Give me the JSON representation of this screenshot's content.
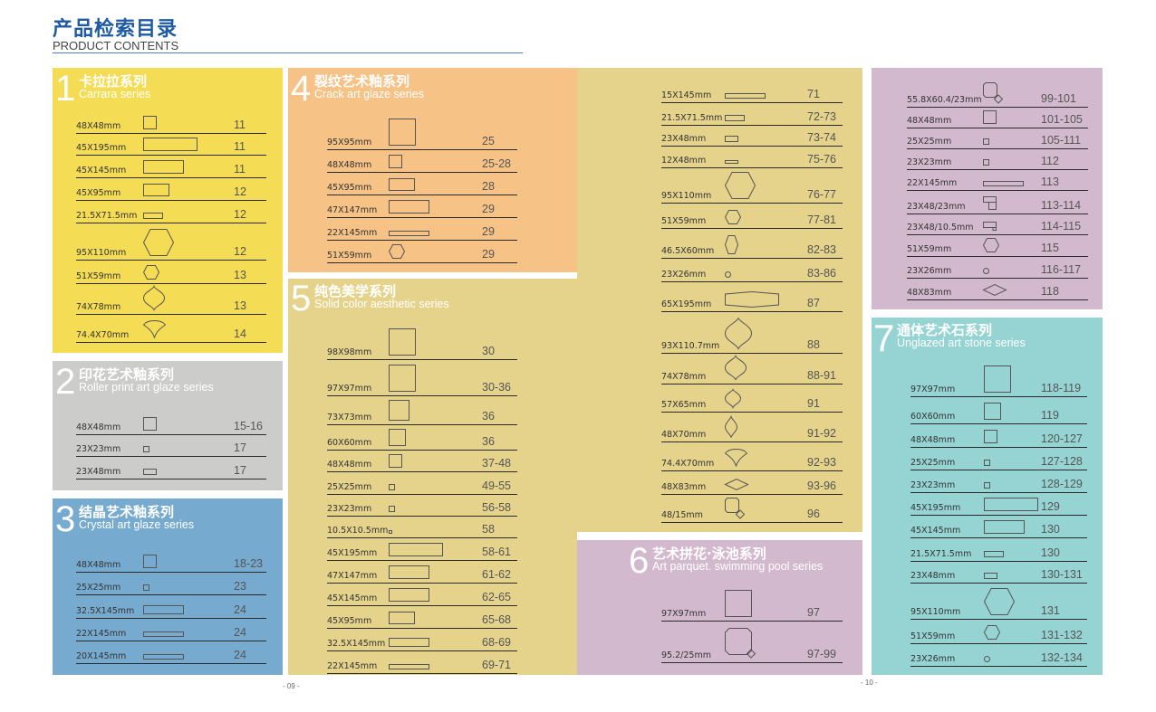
{
  "header": {
    "title_cn": "产品检索目录",
    "title_en": "PRODUCT CONTENTS"
  },
  "colors": {
    "title_blue": "#1f5aa6",
    "yellow": "#f5dc55",
    "gray": "#cccccb",
    "blue": "#76aacf",
    "orange": "#f6c286",
    "tan": "#e5d38c",
    "mauve": "#d3b9cd",
    "teal": "#96d4d4"
  },
  "sections": [
    {
      "num": "1",
      "cn": "卡拉拉系列",
      "en": "Carrara series",
      "rows": [
        {
          "size": "48X48mm",
          "shape": "sq",
          "page": "11"
        },
        {
          "size": "45X195mm",
          "shape": "rect-xl",
          "page": "11"
        },
        {
          "size": "45X145mm",
          "shape": "rect-l",
          "page": "11"
        },
        {
          "size": "45X95mm",
          "shape": "rect-m",
          "page": "12"
        },
        {
          "size": "21.5X71.5mm",
          "shape": "strip-s",
          "page": "12"
        },
        {
          "size": "95X110mm",
          "shape": "hex-l",
          "page": "12"
        },
        {
          "size": "51X59mm",
          "shape": "hex-s",
          "page": "13"
        },
        {
          "size": "74X78mm",
          "shape": "lantern",
          "page": "13"
        },
        {
          "size": "74.4X70mm",
          "shape": "fan",
          "page": "14"
        }
      ]
    },
    {
      "num": "2",
      "cn": "印花艺术釉系列",
      "en": "Roller print art glaze series",
      "rows": [
        {
          "size": "48X48mm",
          "shape": "sq",
          "page": "15-16"
        },
        {
          "size": "23X23mm",
          "shape": "sq-xs",
          "page": "17"
        },
        {
          "size": "23X48mm",
          "shape": "rect-xs",
          "page": "17"
        }
      ]
    },
    {
      "num": "3",
      "cn": "结晶艺术釉系列",
      "en": "Crystal art glaze series",
      "rows": [
        {
          "size": "48X48mm",
          "shape": "sq",
          "page": "18-23"
        },
        {
          "size": "25X25mm",
          "shape": "sq-xs",
          "page": "23"
        },
        {
          "size": "32.5X145mm",
          "shape": "strip-l",
          "page": "24"
        },
        {
          "size": "22X145mm",
          "shape": "strip-thin",
          "page": "24"
        },
        {
          "size": "20X145mm",
          "shape": "strip-thin",
          "page": "24"
        }
      ]
    },
    {
      "num": "4",
      "cn": "裂纹艺术釉系列",
      "en": "Crack art glaze series",
      "rows": [
        {
          "size": "95X95mm",
          "shape": "sq-l",
          "page": "25"
        },
        {
          "size": "48X48mm",
          "shape": "sq",
          "page": "25-28"
        },
        {
          "size": "45X95mm",
          "shape": "rect-m",
          "page": "28"
        },
        {
          "size": "47X147mm",
          "shape": "rect-l",
          "page": "29"
        },
        {
          "size": "22X145mm",
          "shape": "strip-thin",
          "page": "29"
        },
        {
          "size": "51X59mm",
          "shape": "hex-s",
          "page": "29"
        }
      ]
    },
    {
      "num": "5",
      "cn": "纯色美学系列",
      "en": "Solid color aesthetic series",
      "rows": [
        {
          "size": "98X98mm",
          "shape": "sq-l",
          "page": "30"
        },
        {
          "size": "97X97mm",
          "shape": "sq-l",
          "page": "30-36"
        },
        {
          "size": "73X73mm",
          "shape": "sq-m",
          "page": "36"
        },
        {
          "size": "60X60mm",
          "shape": "sq-60",
          "page": "36"
        },
        {
          "size": "48X48mm",
          "shape": "sq",
          "page": "37-48"
        },
        {
          "size": "25X25mm",
          "shape": "sq-xs",
          "page": "49-55"
        },
        {
          "size": "23X23mm",
          "shape": "sq-xs",
          "page": "56-58"
        },
        {
          "size": "10.5X10.5mm",
          "shape": "sq-xxs",
          "page": "58"
        },
        {
          "size": "45X195mm",
          "shape": "rect-xl",
          "page": "58-61"
        },
        {
          "size": "47X147mm",
          "shape": "rect-l",
          "page": "61-62"
        },
        {
          "size": "45X145mm",
          "shape": "rect-l",
          "page": "62-65"
        },
        {
          "size": "45X95mm",
          "shape": "rect-m",
          "page": "65-68"
        },
        {
          "size": "32.5X145mm",
          "shape": "strip-l",
          "page": "68-69"
        },
        {
          "size": "22X145mm",
          "shape": "strip-thin",
          "page": "69-71"
        }
      ],
      "continued_rows": [
        {
          "size": "15X145mm",
          "shape": "strip-thin",
          "page": "71"
        },
        {
          "size": "21.5X71.5mm",
          "shape": "strip-s",
          "page": "72-73"
        },
        {
          "size": "23X48mm",
          "shape": "rect-xs",
          "page": "73-74"
        },
        {
          "size": "12X48mm",
          "shape": "strip-xs",
          "page": "75-76"
        },
        {
          "size": "95X110mm",
          "shape": "hex-l",
          "page": "76-77"
        },
        {
          "size": "51X59mm",
          "shape": "hex-s",
          "page": "77-81"
        },
        {
          "size": "46.5X60mm",
          "shape": "hex-tall",
          "page": "82-83"
        },
        {
          "size": "23X26mm",
          "shape": "circle",
          "page": "83-86"
        },
        {
          "size": "65X195mm",
          "shape": "long-hex",
          "page": "87"
        },
        {
          "size": "93X110.7mm",
          "shape": "lantern-l",
          "page": "88"
        },
        {
          "size": "74X78mm",
          "shape": "lantern",
          "page": "88-91"
        },
        {
          "size": "57X65mm",
          "shape": "lantern-s",
          "page": "91"
        },
        {
          "size": "48X70mm",
          "shape": "lantern-thin",
          "page": "91-92"
        },
        {
          "size": "74.4X70mm",
          "shape": "fan",
          "page": "92-93"
        },
        {
          "size": "48X83mm",
          "shape": "diamond",
          "page": "93-96"
        },
        {
          "size": "48/15mm",
          "shape": "octa-dot",
          "page": "96"
        }
      ]
    },
    {
      "num": "6",
      "cn": "艺术拼花·泳池系列",
      "en": "Art parquet. swimming pool series",
      "rows": [
        {
          "size": "97X97mm",
          "shape": "sq-l",
          "page": "97"
        },
        {
          "size": "95.2/25mm",
          "shape": "octa-dot-l",
          "page": "97-99"
        }
      ],
      "continued_rows": [
        {
          "size": "55.8X60.4/23mm",
          "shape": "octa-dot",
          "page": "99-101"
        },
        {
          "size": "48X48mm",
          "shape": "sq",
          "page": "101-105"
        },
        {
          "size": "25X25mm",
          "shape": "sq-xs",
          "page": "105-111"
        },
        {
          "size": "23X23mm",
          "shape": "sq-xs",
          "page": "112"
        },
        {
          "size": "22X145mm",
          "shape": "strip-thin",
          "page": "113"
        },
        {
          "size": "23X48/23mm",
          "shape": "combo-sq",
          "page": "113-114"
        },
        {
          "size": "23X48/10.5mm",
          "shape": "combo-dot",
          "page": "114-115"
        },
        {
          "size": "51X59mm",
          "shape": "hex-s",
          "page": "115"
        },
        {
          "size": "23X26mm",
          "shape": "circle",
          "page": "116-117"
        },
        {
          "size": "48X83mm",
          "shape": "diamond",
          "page": "118"
        }
      ]
    },
    {
      "num": "7",
      "cn": "通体艺术石系列",
      "en": "Unglazed art stone series",
      "rows": [
        {
          "size": "97X97mm",
          "shape": "sq-l",
          "page": "118-119"
        },
        {
          "size": "60X60mm",
          "shape": "sq-60",
          "page": "119"
        },
        {
          "size": "48X48mm",
          "shape": "sq",
          "page": "120-127"
        },
        {
          "size": "25X25mm",
          "shape": "sq-xs",
          "page": "127-128"
        },
        {
          "size": "23X23mm",
          "shape": "sq-xs",
          "page": "128-129"
        },
        {
          "size": "45X195mm",
          "shape": "rect-xl",
          "page": "129"
        },
        {
          "size": "45X145mm",
          "shape": "rect-l",
          "page": "130"
        },
        {
          "size": "21.5X71.5mm",
          "shape": "strip-s",
          "page": "130"
        },
        {
          "size": "23X48mm",
          "shape": "rect-xs",
          "page": "130-131"
        },
        {
          "size": "95X110mm",
          "shape": "hex-l",
          "page": "131"
        },
        {
          "size": "51X59mm",
          "shape": "hex-s",
          "page": "131-132"
        },
        {
          "size": "23X26mm",
          "shape": "circle",
          "page": "132-134"
        }
      ]
    }
  ],
  "footer": {
    "left_page": "- 09 -",
    "right_page": "- 10 -"
  }
}
